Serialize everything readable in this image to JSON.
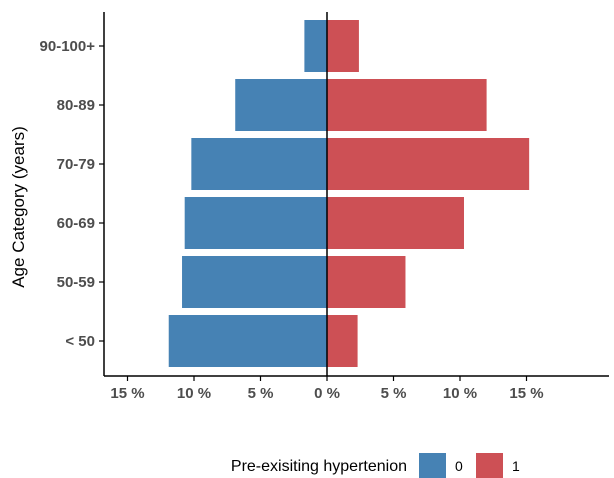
{
  "chart_data": {
    "type": "bar",
    "orientation": "horizontal-diverging",
    "categories": [
      "< 50",
      "50-59",
      "60-69",
      "70-79",
      "80-89",
      "90-100+"
    ],
    "series": [
      {
        "name": "0",
        "values": [
          -11.9,
          -10.9,
          -10.7,
          -10.2,
          -6.9,
          -1.7
        ],
        "color": "#4682b4"
      },
      {
        "name": "1",
        "values": [
          2.3,
          5.9,
          10.3,
          15.2,
          12.0,
          2.4
        ],
        "color": "#cd5055"
      }
    ],
    "xlabel": "",
    "ylabel": "Age Category (years)",
    "xlim": [
      -17,
      21
    ],
    "x_ticks": [
      -15,
      -10,
      -5,
      0,
      5,
      10,
      15
    ],
    "x_tick_labels": [
      "15 %",
      "10 %",
      "5 %",
      "0 %",
      "5 %",
      "10 %",
      "15 %"
    ],
    "legend": {
      "title": "Pre-exisiting hypertenion",
      "position": "bottom",
      "entries": [
        "0",
        "1"
      ]
    },
    "grid": false
  }
}
